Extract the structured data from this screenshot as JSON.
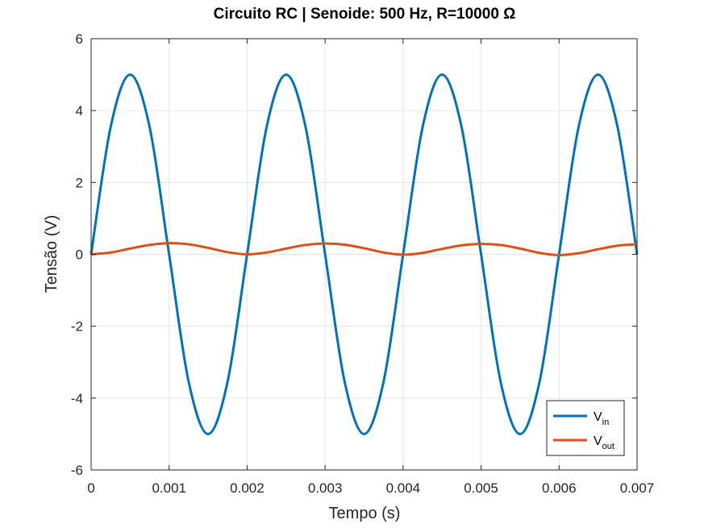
{
  "chart_data": {
    "type": "line",
    "title": "Circuito RC | Senoide: 500 Hz, R=10000 Ω",
    "xlabel": "Tempo (s)",
    "ylabel": "Tensão (V)",
    "xlim": [
      0,
      0.007
    ],
    "ylim": [
      -6,
      6
    ],
    "xticks": [
      0,
      0.001,
      0.002,
      0.003,
      0.004,
      0.005,
      0.006,
      0.007
    ],
    "xtick_labels": [
      "0",
      "0.001",
      "0.002",
      "0.003",
      "0.004",
      "0.005",
      "0.006",
      "0.007"
    ],
    "yticks": [
      -6,
      -4,
      -2,
      0,
      2,
      4,
      6
    ],
    "ytick_labels": [
      "-6",
      "-4",
      "-2",
      "0",
      "2",
      "4",
      "6"
    ],
    "grid": true,
    "legend_position": "bottom-right",
    "series": [
      {
        "name": "V_in",
        "label_main": "V",
        "label_sub": "in",
        "color": "#0072BD",
        "x": [
          0,
          0.00025,
          0.0005,
          0.00075,
          0.001,
          0.00125,
          0.0015,
          0.00175,
          0.002,
          0.00225,
          0.0025,
          0.00275,
          0.003,
          0.00325,
          0.0035,
          0.00375,
          0.004,
          0.00425,
          0.0045,
          0.00475,
          0.005,
          0.00525,
          0.0055,
          0.00575,
          0.006,
          0.00625,
          0.0065,
          0.00675,
          0.007
        ],
        "y": [
          0,
          3.54,
          5,
          3.54,
          0,
          -3.54,
          -5,
          -3.54,
          0,
          3.54,
          5,
          3.54,
          0,
          -3.54,
          -5,
          -3.54,
          0,
          3.54,
          5,
          3.54,
          0,
          -3.54,
          -5,
          -3.54,
          0,
          3.54,
          5,
          3.54,
          0
        ]
      },
      {
        "name": "V_out",
        "label_main": "V",
        "label_sub": "out",
        "color": "#D95319",
        "x": [
          0,
          0.00025,
          0.0005,
          0.00075,
          0.001,
          0.00125,
          0.0015,
          0.00175,
          0.002,
          0.00225,
          0.0025,
          0.00275,
          0.003,
          0.00325,
          0.0035,
          0.00375,
          0.004,
          0.00425,
          0.0045,
          0.00475,
          0.005,
          0.00525,
          0.0055,
          0.00575,
          0.006,
          0.00625,
          0.0065,
          0.00675,
          0.007
        ],
        "y": [
          0,
          0.05,
          0.16,
          0.26,
          0.31,
          0.28,
          0.18,
          0.06,
          0,
          0.05,
          0.16,
          0.26,
          0.3,
          0.27,
          0.17,
          0.05,
          -0.01,
          0.04,
          0.15,
          0.25,
          0.29,
          0.26,
          0.16,
          0.04,
          -0.02,
          0.03,
          0.14,
          0.24,
          0.28
        ]
      }
    ]
  }
}
